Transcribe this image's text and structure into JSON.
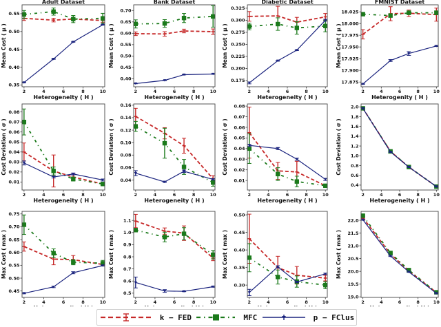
{
  "legend": {
    "items": [
      {
        "name": "k-FED",
        "label": "k − FED",
        "color": "#c62828",
        "style": "dashed",
        "marker": "errorbar"
      },
      {
        "name": "MFC",
        "label": "MFC",
        "color": "#1b7a1b",
        "style": "dashdot",
        "marker": "square"
      },
      {
        "name": "p-FClus",
        "label": "p − FClus",
        "color": "#1a237e",
        "style": "solid",
        "marker": "tri"
      }
    ]
  },
  "chart_data": [
    {
      "type": "line",
      "title": "Adult Dataset",
      "xlabel": "Heterogeneity ( H )",
      "ylabel": "Mean Cost ( μ )",
      "x": [
        2,
        5,
        7,
        10
      ],
      "xlim": [
        1.8,
        10.2
      ],
      "xticks": [
        2,
        4,
        6,
        8,
        10
      ],
      "ylim": [
        0.345,
        0.575
      ],
      "yticks": [
        0.35,
        0.4,
        0.45,
        0.5,
        0.55
      ],
      "ytick_labels": [
        "0.35",
        "0.40",
        "0.45",
        "0.50",
        "0.55"
      ],
      "series": [
        {
          "name": "k-FED",
          "values": [
            0.537,
            0.532,
            0.535,
            0.531
          ],
          "err": [
            0.006,
            0.005,
            0.004,
            0.005
          ]
        },
        {
          "name": "MFC",
          "values": [
            0.548,
            0.556,
            0.535,
            0.537
          ],
          "err": [
            0.011,
            0.01,
            0.01,
            0.014
          ]
        },
        {
          "name": "p-FClus",
          "values": [
            0.357,
            0.423,
            0.471,
            0.519
          ],
          "err": [
            0.001,
            0.001,
            0.001,
            0.001
          ]
        }
      ]
    },
    {
      "type": "line",
      "title": "Bank Dataset",
      "xlabel": "Heterogeneity ( H )",
      "ylabel": "Mean Cost ( μ )",
      "x": [
        2,
        5,
        7,
        10
      ],
      "xlim": [
        1.8,
        10.2
      ],
      "xticks": [
        2,
        4,
        6,
        8,
        10
      ],
      "ylim": [
        0.365,
        0.725
      ],
      "yticks": [
        0.4,
        0.45,
        0.5,
        0.55,
        0.6,
        0.65,
        0.7
      ],
      "ytick_labels": [
        "0.40",
        "0.45",
        "0.50",
        "0.55",
        "0.60",
        "0.65",
        "0.70"
      ],
      "series": [
        {
          "name": "k-FED",
          "values": [
            0.598,
            0.597,
            0.61,
            0.607
          ],
          "err": [
            0.008,
            0.01,
            0.008,
            0.012
          ]
        },
        {
          "name": "MFC",
          "values": [
            0.641,
            0.643,
            0.667,
            0.674
          ],
          "err": [
            0.018,
            0.017,
            0.02,
            0.047
          ]
        },
        {
          "name": "p-FClus",
          "values": [
            0.379,
            0.393,
            0.418,
            0.421
          ],
          "err": [
            0.001,
            0.001,
            0.001,
            0.001
          ]
        }
      ]
    },
    {
      "type": "line",
      "title": "Diabetic Dataset",
      "xlabel": "Heterogeneity ( H )",
      "ylabel": "Mean Cost ( μ )",
      "x": [
        2,
        5,
        7,
        10
      ],
      "xlim": [
        1.8,
        10.2
      ],
      "xticks": [
        2,
        4,
        6,
        8,
        10
      ],
      "ylim": [
        0.162,
        0.332
      ],
      "yticks": [
        0.175,
        0.2,
        0.225,
        0.25,
        0.275,
        0.3,
        0.325
      ],
      "ytick_labels": [
        "0.175",
        "0.200",
        "0.225",
        "0.250",
        "0.275",
        "0.300",
        "0.325"
      ],
      "series": [
        {
          "name": "k-FED",
          "values": [
            0.308,
            0.309,
            0.296,
            0.307
          ],
          "err": [
            0.01,
            0.02,
            0.01,
            0.007
          ]
        },
        {
          "name": "MFC",
          "values": [
            0.287,
            0.292,
            0.284,
            0.288
          ],
          "err": [
            0.007,
            0.013,
            0.013,
            0.012
          ]
        },
        {
          "name": "p-FClus",
          "values": [
            0.17,
            0.216,
            0.238,
            0.3
          ],
          "err": [
            0.002,
            0.001,
            0.001,
            0.002
          ]
        }
      ]
    },
    {
      "type": "line",
      "title": "FMNIST Dataset",
      "xlabel": "Heterogenity ( H )",
      "ylabel": "Mean Cost ( μ )",
      "x": [
        2,
        5,
        7,
        10
      ],
      "xlim": [
        1.8,
        10.2
      ],
      "xticks": [
        2,
        4,
        6,
        8,
        10
      ],
      "ylim": [
        17.865,
        18.04
      ],
      "yticks": [
        17.875,
        17.9,
        17.925,
        17.95,
        17.975,
        18.0,
        18.025
      ],
      "ytick_labels": [
        "17.875",
        "17.900",
        "17.925",
        "17.950",
        "17.975",
        "18.000",
        "18.025"
      ],
      "series": [
        {
          "name": "k-FED",
          "values": [
            17.977,
            18.021,
            18.022,
            18.019
          ],
          "err": [
            0.01,
            0.015,
            0.007,
            0.014
          ]
        },
        {
          "name": "MFC",
          "values": [
            18.02,
            18.017,
            18.023,
            18.023
          ],
          "err": [
            0.002,
            0.003,
            0.004,
            0.004
          ]
        },
        {
          "name": "p-FClus",
          "values": [
            17.871,
            17.921,
            17.936,
            17.952
          ],
          "err": [
            0.001,
            0.002,
            0.004,
            0.001
          ]
        }
      ]
    },
    {
      "type": "line",
      "title": "",
      "xlabel": "Heterogeneity ( H )",
      "ylabel": "Cost Deviation ( σ )",
      "x": [
        2,
        5,
        7,
        10
      ],
      "xlim": [
        1.8,
        10.2
      ],
      "xticks": [
        2,
        4,
        6,
        8,
        10
      ],
      "ylim": [
        0.002,
        0.088
      ],
      "yticks": [
        0.01,
        0.02,
        0.03,
        0.04,
        0.05,
        0.06,
        0.07,
        0.08
      ],
      "ytick_labels": [
        "0.01",
        "0.02",
        "0.03",
        "0.04",
        "0.05",
        "0.06",
        "0.07",
        "0.08"
      ],
      "series": [
        {
          "name": "k-FED",
          "values": [
            0.04,
            0.021,
            0.015,
            0.008
          ],
          "err": [
            0.009,
            0.016,
            0.003,
            0.001
          ]
        },
        {
          "name": "MFC",
          "values": [
            0.07,
            0.021,
            0.013,
            0.008
          ],
          "err": [
            0.013,
            0.004,
            0.002,
            0.001
          ]
        },
        {
          "name": "p-FClus",
          "values": [
            0.029,
            0.015,
            0.018,
            0.012
          ],
          "err": [
            0.002,
            0.001,
            0.001,
            0.001
          ]
        }
      ]
    },
    {
      "type": "line",
      "title": "",
      "xlabel": "Heterogeneity ( H )",
      "ylabel": "Cost Deviation ( σ )",
      "x": [
        2,
        5,
        7,
        10
      ],
      "xlim": [
        1.8,
        10.2
      ],
      "xticks": [
        2,
        4,
        6,
        8,
        10
      ],
      "ylim": [
        0.024,
        0.162
      ],
      "yticks": [
        0.04,
        0.06,
        0.08,
        0.1,
        0.12,
        0.14,
        0.16
      ],
      "ytick_labels": [
        "0.04",
        "0.06",
        "0.08",
        "0.10",
        "0.12",
        "0.14",
        "0.16"
      ],
      "series": [
        {
          "name": "k-FED",
          "values": [
            0.142,
            0.115,
            0.095,
            0.042
          ],
          "err": [
            0.013,
            0.009,
            0.012,
            0.005
          ]
        },
        {
          "name": "MFC",
          "values": [
            0.126,
            0.099,
            0.061,
            0.036
          ],
          "err": [
            0.008,
            0.024,
            0.012,
            0.006
          ]
        },
        {
          "name": "p-FClus",
          "values": [
            0.051,
            0.037,
            0.054,
            0.041
          ],
          "err": [
            0.004,
            0.001,
            0.002,
            0.001
          ]
        }
      ]
    },
    {
      "type": "line",
      "title": "",
      "xlabel": "Heterogeneity ( H )",
      "ylabel": "Cost Deviation ( σ )",
      "x": [
        2,
        5,
        7,
        10
      ],
      "xlim": [
        1.8,
        10.2
      ],
      "xticks": [
        2,
        4,
        6,
        8,
        10
      ],
      "ylim": [
        0.001,
        0.082
      ],
      "yticks": [
        0.01,
        0.02,
        0.03,
        0.04,
        0.05,
        0.06,
        0.07,
        0.08
      ],
      "ytick_labels": [
        "0.01",
        "0.02",
        "0.03",
        "0.04",
        "0.05",
        "0.06",
        "0.07",
        "0.08"
      ],
      "series": [
        {
          "name": "k-FED",
          "values": [
            0.055,
            0.019,
            0.018,
            0.005
          ],
          "err": [
            0.024,
            0.008,
            0.01,
            0.001
          ]
        },
        {
          "name": "MFC",
          "values": [
            0.04,
            0.016,
            0.009,
            0.005
          ],
          "err": [
            0.014,
            0.006,
            0.005,
            0.001
          ]
        },
        {
          "name": "p-FClus",
          "values": [
            0.043,
            0.04,
            0.03,
            0.011
          ],
          "err": [
            0.001,
            0.001,
            0.001,
            0.001
          ]
        }
      ]
    },
    {
      "type": "line",
      "title": "",
      "xlabel": "Heterogeneity ( H )",
      "ylabel": "Cost Deviation ( σ )",
      "x": [
        2,
        5,
        7,
        10
      ],
      "xlim": [
        1.8,
        10.2
      ],
      "xticks": [
        2,
        4,
        6,
        8,
        10
      ],
      "ylim": [
        0.3,
        2.06
      ],
      "yticks": [
        0.4,
        0.6,
        0.8,
        1.0,
        1.2,
        1.4,
        1.6,
        1.8,
        2.0
      ],
      "ytick_labels": [
        "0.4",
        "0.6",
        "0.8",
        "1.0",
        "1.2",
        "1.4",
        "1.6",
        "1.8",
        "2.0"
      ],
      "series": [
        {
          "name": "k-FED",
          "values": [
            1.97,
            1.09,
            0.77,
            0.37
          ],
          "err": [
            0.01,
            0.01,
            0.01,
            0.01
          ]
        },
        {
          "name": "MFC",
          "values": [
            1.97,
            1.09,
            0.77,
            0.37
          ],
          "err": [
            0.01,
            0.01,
            0.01,
            0.01
          ]
        },
        {
          "name": "p-FClus",
          "values": [
            1.97,
            1.08,
            0.77,
            0.37
          ],
          "err": [
            0.01,
            0.01,
            0.01,
            0.01
          ]
        }
      ]
    },
    {
      "type": "line",
      "title": "",
      "xlabel": "Heterogeneity ( H )",
      "ylabel": "Max Cost ( max )",
      "x": [
        2,
        5,
        7,
        10
      ],
      "xlim": [
        1.8,
        10.2
      ],
      "xticks": [
        2,
        4,
        6,
        8,
        10
      ],
      "ylim": [
        0.425,
        0.76
      ],
      "yticks": [
        0.45,
        0.5,
        0.55,
        0.6,
        0.65,
        0.7,
        0.75
      ],
      "ytick_labels": [
        "0.45",
        "0.50",
        "0.55",
        "0.60",
        "0.65",
        "0.70",
        "0.75"
      ],
      "series": [
        {
          "name": "k-FED",
          "values": [
            0.623,
            0.574,
            0.572,
            0.553
          ],
          "err": [
            0.018,
            0.022,
            0.016,
            0.005
          ]
        },
        {
          "name": "MFC",
          "values": [
            0.708,
            0.597,
            0.562,
            0.558
          ],
          "err": [
            0.038,
            0.017,
            0.01,
            0.011
          ]
        },
        {
          "name": "p-FClus",
          "values": [
            0.441,
            0.466,
            0.521,
            0.549
          ],
          "err": [
            0.002,
            0.003,
            0.004,
            0.002
          ]
        }
      ]
    },
    {
      "type": "line",
      "title": "",
      "xlabel": "Heterogeneity ( H )",
      "ylabel": "Max Cost ( max )",
      "x": [
        2,
        5,
        7,
        10
      ],
      "xlim": [
        1.8,
        10.2
      ],
      "xticks": [
        2,
        4,
        6,
        8,
        10
      ],
      "ylim": [
        0.465,
        1.175
      ],
      "yticks": [
        0.5,
        0.6,
        0.7,
        0.8,
        0.9,
        1.0,
        1.1
      ],
      "ytick_labels": [
        "0.5",
        "0.6",
        "0.7",
        "0.8",
        "0.9",
        "1.0",
        "1.1"
      ],
      "series": [
        {
          "name": "k-FED",
          "values": [
            1.095,
            1.012,
            0.995,
            0.79
          ],
          "err": [
            0.055,
            0.026,
            0.06,
            0.022
          ]
        },
        {
          "name": "MFC",
          "values": [
            1.02,
            0.963,
            0.99,
            0.817
          ],
          "err": [
            0.012,
            0.04,
            0.05,
            0.035
          ]
        },
        {
          "name": "p-FClus",
          "values": [
            0.588,
            0.518,
            0.515,
            0.553
          ],
          "err": [
            0.045,
            0.011,
            0.003,
            0.004
          ]
        }
      ]
    },
    {
      "type": "line",
      "title": "",
      "xlabel": "Heterogeneity ( H )",
      "ylabel": "Max Cost ( max )",
      "x": [
        2,
        5,
        7,
        10
      ],
      "xlim": [
        1.8,
        10.2
      ],
      "xticks": [
        2,
        4,
        6,
        8,
        10
      ],
      "ylim": [
        0.265,
        0.51
      ],
      "yticks": [
        0.3,
        0.35,
        0.4,
        0.45,
        0.5
      ],
      "ytick_labels": [
        "0.30",
        "0.35",
        "0.40",
        "0.45",
        "0.50"
      ],
      "series": [
        {
          "name": "k-FED",
          "values": [
            0.432,
            0.35,
            0.328,
            0.32
          ],
          "err": [
            0.07,
            0.032,
            0.025,
            0.008
          ]
        },
        {
          "name": "MFC",
          "values": [
            0.378,
            0.323,
            0.31,
            0.3
          ],
          "err": [
            0.04,
            0.02,
            0.016,
            0.01
          ]
        },
        {
          "name": "p-FClus",
          "values": [
            0.279,
            0.352,
            0.309,
            0.332
          ],
          "err": [
            0.009,
            0.003,
            0.002,
            0.002
          ]
        }
      ]
    },
    {
      "type": "line",
      "title": "",
      "xlabel": "Heterogeneity ( H )",
      "ylabel": "Max Cost ( max )",
      "x": [
        2,
        5,
        7,
        10
      ],
      "xlim": [
        1.8,
        10.2
      ],
      "xticks": [
        2,
        4,
        6,
        8,
        10
      ],
      "ylim": [
        18.98,
        22.35
      ],
      "yticks": [
        19.0,
        19.5,
        20.0,
        20.5,
        21.0,
        21.5,
        22.0
      ],
      "ytick_labels": [
        "19.0",
        "19.5",
        "20.0",
        "20.5",
        "21.0",
        "21.5",
        "22.0"
      ],
      "series": [
        {
          "name": "k-FED",
          "values": [
            22.1,
            20.68,
            20.02,
            19.17
          ],
          "err": [
            0.03,
            0.03,
            0.03,
            0.03
          ]
        },
        {
          "name": "MFC",
          "values": [
            22.18,
            20.72,
            20.05,
            19.18
          ],
          "err": [
            0.03,
            0.03,
            0.03,
            0.03
          ]
        },
        {
          "name": "p-FClus",
          "values": [
            22.02,
            20.6,
            19.98,
            19.14
          ],
          "err": [
            0.02,
            0.02,
            0.02,
            0.02
          ]
        }
      ]
    }
  ]
}
